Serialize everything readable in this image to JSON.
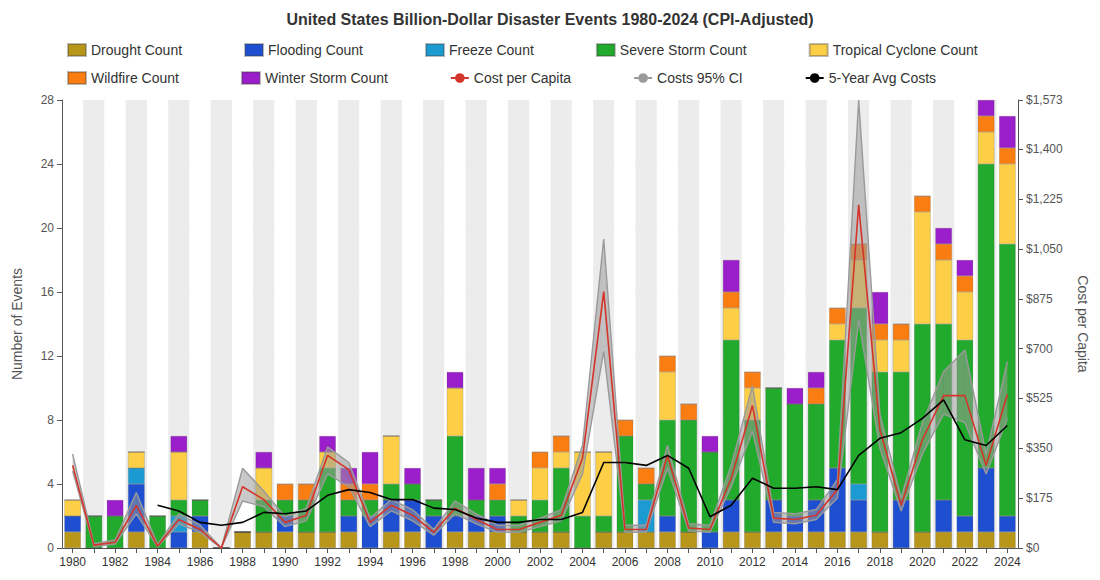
{
  "chart_data": {
    "type": "bar",
    "title": "United States Billion-Dollar Disaster Events 1980-2024 (CPI-Adjusted)",
    "ylabel": "Number of Events",
    "y2label": "Cost per Capita",
    "stacked": true,
    "grid": true,
    "legend": "top",
    "categories": [
      "1980",
      null,
      "1982",
      null,
      "1984",
      null,
      "1986",
      null,
      "1988",
      null,
      "1990",
      null,
      "1992",
      null,
      "1994",
      null,
      "1996",
      null,
      "1998",
      null,
      "2000",
      null,
      "2002",
      null,
      "2004",
      null,
      "2006",
      null,
      "2008",
      null,
      "2010",
      null,
      "2012",
      null,
      "2014",
      null,
      "2016",
      null,
      "2018",
      null,
      "2020",
      null,
      "2022",
      null,
      "2024"
    ],
    "ylim": [
      0,
      28
    ],
    "yticks": [
      0,
      4,
      8,
      12,
      16,
      20,
      24,
      28
    ],
    "y2lim": [
      0,
      1573
    ],
    "y2ticks": [
      {
        "value": 0,
        "label": "$0"
      },
      {
        "value": 175,
        "label": "$175"
      },
      {
        "value": 350,
        "label": "$350"
      },
      {
        "value": 525,
        "label": "$525"
      },
      {
        "value": 700,
        "label": "$700"
      },
      {
        "value": 875,
        "label": "$875"
      },
      {
        "value": 1050,
        "label": "$1,050"
      },
      {
        "value": 1225,
        "label": "$1,225"
      },
      {
        "value": 1400,
        "label": "$1,400"
      },
      {
        "value": 1573,
        "label": "$1,573"
      }
    ],
    "series": [
      {
        "name": "Drought Count",
        "color": "#b8961a",
        "values": [
          1,
          0,
          0,
          1,
          0,
          0,
          1,
          0,
          1,
          1,
          1,
          1,
          1,
          1,
          0,
          1,
          1,
          0,
          1,
          1,
          1,
          1,
          1,
          1,
          0,
          1,
          1,
          1,
          1,
          1,
          0,
          1,
          1,
          1,
          1,
          1,
          1,
          1,
          1,
          0,
          1,
          1,
          1,
          1,
          1
        ]
      },
      {
        "name": "Flooding Count",
        "color": "#1e4fd0",
        "values": [
          1,
          0,
          0,
          3,
          0,
          1,
          1,
          0,
          0,
          0,
          1,
          0,
          0,
          1,
          2,
          2,
          2,
          2,
          1,
          1,
          1,
          0,
          0,
          0,
          0,
          0,
          0,
          0,
          1,
          0,
          1,
          2,
          0,
          2,
          1,
          2,
          4,
          2,
          0,
          3,
          0,
          2,
          1,
          4,
          1
        ]
      },
      {
        "name": "Freeze Count",
        "color": "#1b9bd1",
        "values": [
          0,
          0,
          0,
          1,
          0,
          1,
          0,
          0,
          0,
          0,
          0,
          0,
          0,
          0,
          0,
          0,
          0,
          0,
          0,
          0,
          0,
          0,
          0,
          0,
          0,
          0,
          0,
          2,
          0,
          0,
          0,
          0,
          0,
          0,
          0,
          0,
          0,
          1,
          0,
          0,
          0,
          0,
          0,
          0,
          0
        ]
      },
      {
        "name": "Severe Storm Count",
        "color": "#22aa2c",
        "values": [
          0,
          2,
          2,
          0,
          2,
          1,
          1,
          0,
          0,
          2,
          1,
          2,
          4,
          1,
          1,
          1,
          1,
          1,
          5,
          1,
          1,
          1,
          2,
          4,
          2,
          1,
          6,
          1,
          6,
          7,
          5,
          10,
          7,
          7,
          7,
          6,
          8,
          11,
          10,
          8,
          13,
          11,
          11,
          19,
          17
        ]
      },
      {
        "name": "Tropical Cyclone Count",
        "color": "#fccf47",
        "values": [
          1,
          0,
          0,
          1,
          0,
          3,
          0,
          0,
          0,
          2,
          0,
          0,
          1,
          0,
          0,
          3,
          0,
          0,
          3,
          0,
          0,
          1,
          2,
          1,
          4,
          4,
          0,
          0,
          3,
          0,
          0,
          2,
          2,
          0,
          0,
          0,
          1,
          3,
          2,
          2,
          7,
          4,
          3,
          2,
          5
        ]
      },
      {
        "name": "Wildfire Count",
        "color": "#fa7d12",
        "values": [
          0,
          0,
          0,
          0,
          0,
          0,
          0,
          0,
          0,
          0,
          1,
          1,
          0,
          1,
          1,
          0,
          0,
          0,
          0,
          0,
          1,
          0,
          1,
          1,
          0,
          0,
          1,
          1,
          1,
          1,
          0,
          1,
          1,
          0,
          0,
          1,
          1,
          1,
          1,
          1,
          1,
          1,
          1,
          1,
          1
        ]
      },
      {
        "name": "Winter Storm Count",
        "color": "#9a1ec9",
        "values": [
          0,
          0,
          1,
          0,
          0,
          1,
          0,
          0,
          0,
          1,
          0,
          0,
          1,
          1,
          2,
          0,
          1,
          0,
          1,
          2,
          1,
          0,
          0,
          0,
          0,
          0,
          0,
          0,
          0,
          0,
          1,
          2,
          0,
          0,
          1,
          1,
          0,
          0,
          2,
          0,
          0,
          1,
          1,
          1,
          2
        ]
      },
      {
        "name": "Cost per Capita",
        "type": "line",
        "axis": "y2",
        "color": "#d4342a",
        "values": [
          290,
          10,
          20,
          150,
          7,
          100,
          65,
          0,
          215,
          170,
          90,
          115,
          325,
          275,
          90,
          150,
          115,
          55,
          140,
          100,
          65,
          65,
          90,
          115,
          315,
          900,
          65,
          65,
          325,
          70,
          65,
          245,
          500,
          105,
          100,
          115,
          205,
          1205,
          415,
          150,
          380,
          535,
          535,
          290,
          540
        ]
      },
      {
        "name": "Costs 95% CI",
        "type": "band",
        "axis": "y2",
        "color": "#9a9a9a",
        "lower": [
          270,
          5,
          14,
          120,
          4,
          85,
          55,
          0,
          165,
          145,
          75,
          95,
          260,
          215,
          75,
          130,
          95,
          45,
          120,
          85,
          55,
          55,
          75,
          95,
          260,
          690,
          55,
          55,
          280,
          60,
          55,
          215,
          410,
          90,
          85,
          100,
          175,
          800,
          350,
          130,
          330,
          470,
          440,
          260,
          455
        ],
        "upper": [
          330,
          15,
          28,
          195,
          12,
          120,
          80,
          0,
          280,
          200,
          110,
          140,
          355,
          300,
          105,
          170,
          135,
          65,
          165,
          120,
          80,
          80,
          105,
          135,
          360,
          1085,
          80,
          80,
          360,
          85,
          80,
          290,
          570,
          125,
          120,
          135,
          240,
          1573,
          470,
          175,
          440,
          620,
          695,
          330,
          655
        ]
      },
      {
        "name": "5-Year Avg Costs",
        "type": "line",
        "axis": "y2",
        "color": "#000000",
        "values": [
          null,
          null,
          null,
          null,
          150,
          130,
          90,
          80,
          90,
          125,
          120,
          130,
          185,
          205,
          195,
          170,
          170,
          140,
          135,
          105,
          90,
          90,
          100,
          100,
          125,
          300,
          300,
          290,
          325,
          280,
          110,
          150,
          245,
          210,
          210,
          215,
          205,
          325,
          385,
          405,
          455,
          520,
          380,
          360,
          430
        ]
      }
    ]
  }
}
